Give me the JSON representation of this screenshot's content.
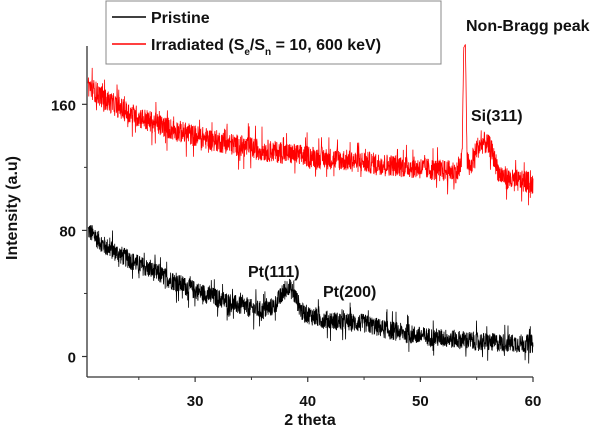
{
  "chart_data": {
    "type": "line",
    "title": "",
    "xlabel": "2 theta",
    "ylabel": "Intensity (a.u)",
    "xlim": [
      20.4,
      60
    ],
    "ylim": [
      -13,
      197
    ],
    "xticks": [
      30,
      40,
      50,
      60
    ],
    "xtick_labels": [
      "30",
      "40",
      "50",
      "60"
    ],
    "yticks": [
      0,
      80,
      160
    ],
    "ytick_labels": [
      "0",
      "80",
      "160"
    ],
    "grid": false,
    "legend": {
      "placement": "top",
      "entries": [
        {
          "label": "Pristine",
          "color": "#000000"
        },
        {
          "label_main": "Irradiated (S",
          "sub1": "e",
          "mid": "/S",
          "sub2": "n",
          "label_tail": " = 10, 600 keV)",
          "color": "#ff0000"
        }
      ]
    },
    "series": [
      {
        "name": "Pristine",
        "color": "#000000",
        "noise": 6,
        "x": [
          20.5,
          22,
          24,
          26,
          28,
          30,
          32,
          34,
          36,
          37,
          37.8,
          38.3,
          38.9,
          39.5,
          41,
          43,
          45,
          47,
          50,
          53,
          56,
          60
        ],
        "y": [
          80,
          70,
          62,
          55,
          48,
          42,
          37,
          32,
          29,
          32,
          40,
          45,
          38,
          28,
          24,
          22,
          21,
          17,
          13,
          11,
          9,
          8
        ]
      },
      {
        "name": "Irradiated (Se/Sn = 10, 600 keV)",
        "color": "#ff0000",
        "noise": 7,
        "x": [
          20.5,
          22,
          24,
          26,
          28,
          30,
          33,
          36,
          40,
          44,
          48,
          52,
          53.4,
          53.7,
          53.85,
          54.0,
          54.15,
          54.4,
          55,
          55.6,
          56.2,
          57,
          58,
          60
        ],
        "y": [
          172,
          163,
          155,
          149,
          144,
          140,
          135,
          131,
          127,
          124,
          121,
          118,
          117,
          125,
          196,
          198,
          125,
          118,
          132,
          136,
          133,
          116,
          112,
          110
        ]
      }
    ],
    "annotations": [
      {
        "text": "Non-Bragg peak",
        "x": 54,
        "y": 206
      },
      {
        "text": "Si(311)",
        "x": 56,
        "y": 150
      },
      {
        "text": "Pt(111)",
        "x": 38.3,
        "y": 52
      },
      {
        "text": "Pt(200)",
        "x": 44.3,
        "y": 38
      }
    ]
  }
}
